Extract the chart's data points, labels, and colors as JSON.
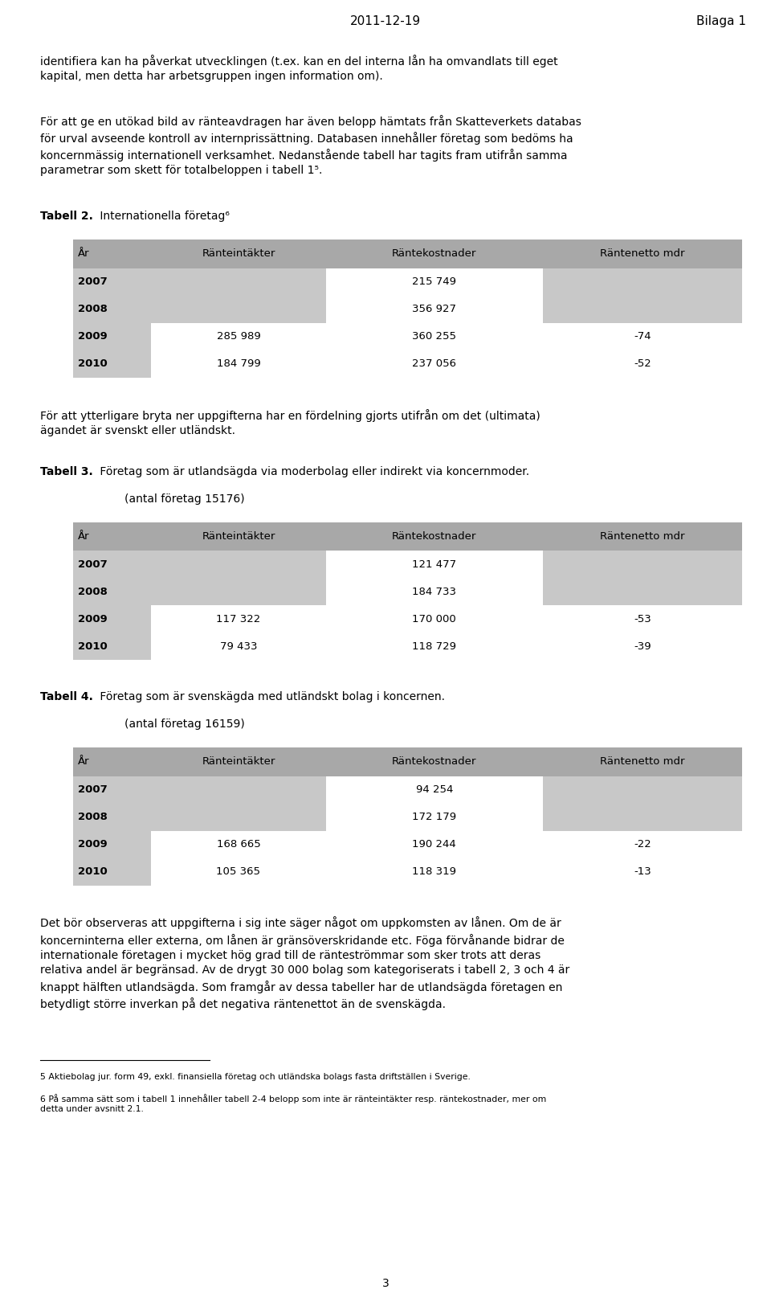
{
  "header_left": "2011-12-19",
  "header_right": "Bilaga 1",
  "para1": "identifiera kan ha påverkat utvecklingen (t.ex. kan en del interna lån ha omvandlats till eget\nkapital, men detta har arbetsgruppen ingen information om).",
  "para2": "För att ge en utökad bild av ränteavdragen har även belopp hämtats från Skatteverkets databas\nför urval avseende kontroll av internprissättning. Databasen innehåller företag som bedöms ha\nkoncernmässig internationell verksamhet. Nedanstående tabell har tagits fram utifrån samma\nparametrar som skett för totalbeloppen i tabell 1⁵.",
  "tabell2_title_bold": "Tabell 2.",
  "tabell2_title_normal": " Internationella företag⁶",
  "tabell2_headers": [
    "År",
    "Ränteintäkter",
    "Räntekostnader",
    "Räntenetto mdr"
  ],
  "tabell2_rows": [
    [
      "2007",
      "",
      "215 749",
      ""
    ],
    [
      "2008",
      "",
      "356 927",
      ""
    ],
    [
      "2009",
      "285 989",
      "360 255",
      "-74"
    ],
    [
      "2010",
      "184 799",
      "237 056",
      "-52"
    ]
  ],
  "para3": "För att ytterligare bryta ner uppgifterna har en fördelning gjorts utifrån om det (ultimata)\nägandet är svenskt eller utländskt.",
  "tabell3_title_bold": "Tabell 3.",
  "tabell3_title_normal": " Företag som är utlandsägda via moderbolag eller indirekt via koncernmoder.",
  "tabell3_subtitle": "        (antal företag 15176)",
  "tabell3_headers": [
    "År",
    "Ränteintäkter",
    "Räntekostnader",
    "Räntenetto mdr"
  ],
  "tabell3_rows": [
    [
      "2007",
      "",
      "121 477",
      ""
    ],
    [
      "2008",
      "",
      "184 733",
      ""
    ],
    [
      "2009",
      "117 322",
      "170 000",
      "-53"
    ],
    [
      "2010",
      "79 433",
      "118 729",
      "-39"
    ]
  ],
  "tabell4_title_bold": "Tabell 4.",
  "tabell4_title_normal": " Företag som är svenskägda med utländskt bolag i koncernen.",
  "tabell4_subtitle": "        (antal företag 16159)",
  "tabell4_headers": [
    "År",
    "Ränteintäkter",
    "Räntekostnader",
    "Räntenetto mdr"
  ],
  "tabell4_rows": [
    [
      "2007",
      "",
      "94 254",
      ""
    ],
    [
      "2008",
      "",
      "172 179",
      ""
    ],
    [
      "2009",
      "168 665",
      "190 244",
      "-22"
    ],
    [
      "2010",
      "105 365",
      "118 319",
      "-13"
    ]
  ],
  "para4": "Det bör observeras att uppgifterna i sig inte säger något om uppkomsten av lånen. Om de är\nkoncerninterna eller externa, om lånen är gränsöverskridande etc. Föga förvånande bidrar de\ninternationale företagen i mycket hög grad till de ränteströmmar som sker trots att deras\nrelativa andel är begränsad. Av de drygt 30 000 bolag som kategoriserats i tabell 2, 3 och 4 är\nknappt hälften utlandsägda. Som framgår av dessa tabeller har de utlandsägda företagen en\nbetydligt större inverkan på det negativa räntenettot än de svenskägda.",
  "footnote1": "5 Aktiebolag jur. form 49, exkl. finansiella företag och utländska bolags fasta driftställen i Sverige.",
  "footnote2": "6 På samma sätt som i tabell 1 innehåller tabell 2-4 belopp som inte är ränteintäkter resp. räntekostnader, mer om\ndetta under avsnitt 2.1.",
  "page_number": "3",
  "bg_color": "#ffffff",
  "table_header_bg": "#a8a8a8",
  "table_grey_bg": "#c8c8c8",
  "table_white_bg": "#ffffff",
  "text_color": "#000000",
  "ml": 0.052,
  "mr": 0.968,
  "table_indent": 0.095,
  "body_fontsize": 10.0,
  "table_fontsize": 9.5,
  "footnote_fontsize": 7.8
}
